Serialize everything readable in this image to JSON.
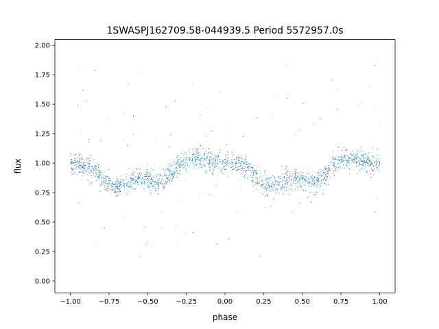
{
  "chart_data": {
    "type": "scatter",
    "title": "1SWASPJ162709.58-044939.5 Period 5572957.0s",
    "xlabel": "phase",
    "ylabel": "flux",
    "xlim": [
      -1.1,
      1.1
    ],
    "ylim": [
      -0.1,
      2.05
    ],
    "xticks": [
      -1.0,
      -0.75,
      -0.5,
      -0.25,
      0.0,
      0.25,
      0.5,
      0.75,
      1.0
    ],
    "xtick_labels": [
      "−1.00",
      "−0.75",
      "−0.50",
      "−0.25",
      "0.00",
      "0.25",
      "0.50",
      "0.75",
      "1.00"
    ],
    "yticks": [
      0.0,
      0.25,
      0.5,
      0.75,
      1.0,
      1.25,
      1.5,
      1.75,
      2.0
    ],
    "ytick_labels": [
      "0.00",
      "0.25",
      "0.50",
      "0.75",
      "1.00",
      "1.25",
      "1.50",
      "1.75",
      "2.00"
    ],
    "grid": false,
    "legend": "none",
    "marker_color": "#1f77b4",
    "series": [
      {
        "x": [
          -1.0,
          -0.95,
          -0.9,
          -0.85,
          -0.8,
          -0.75,
          -0.7,
          -0.65,
          -0.6,
          -0.55,
          -0.5,
          -0.45,
          -0.4,
          -0.35,
          -0.3,
          -0.25,
          -0.2,
          -0.15,
          -0.1,
          -0.05,
          0.0,
          0.05,
          0.1,
          0.15,
          0.2,
          0.25,
          0.3,
          0.35,
          0.4,
          0.45,
          0.5,
          0.55,
          0.6,
          0.65,
          0.7,
          0.75,
          0.8,
          0.85,
          0.9,
          0.95,
          1.0
        ],
        "y": [
          1.0,
          1.0,
          0.98,
          0.95,
          0.88,
          0.82,
          0.8,
          0.82,
          0.86,
          0.88,
          0.87,
          0.84,
          0.85,
          0.9,
          0.98,
          1.03,
          1.05,
          1.04,
          1.02,
          1.0,
          1.0,
          1.0,
          0.98,
          0.95,
          0.88,
          0.82,
          0.8,
          0.82,
          0.86,
          0.88,
          0.87,
          0.84,
          0.85,
          0.9,
          0.98,
          1.03,
          1.05,
          1.04,
          1.02,
          1.0,
          1.0
        ]
      }
    ]
  }
}
